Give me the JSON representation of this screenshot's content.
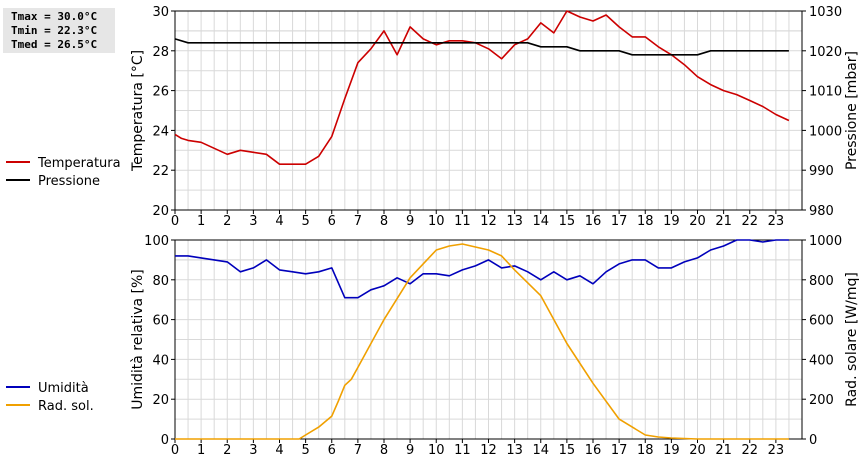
{
  "stats": {
    "tmax": "Tmax = 30.0°C",
    "tmin": "Tmin = 22.3°C",
    "tmed": "Tmed = 26.5°C"
  },
  "chart_data": [
    {
      "type": "line",
      "ylabel": "Temperatura [°C]",
      "y2label": "Pressione [mbar]",
      "xlim": [
        0,
        24
      ],
      "ylim": [
        20,
        30
      ],
      "y2lim": [
        980,
        1030
      ],
      "xticks": [
        0,
        1,
        2,
        3,
        4,
        5,
        6,
        7,
        8,
        9,
        10,
        11,
        12,
        13,
        14,
        15,
        16,
        17,
        18,
        19,
        20,
        21,
        22,
        23
      ],
      "yticks": [
        20,
        22,
        24,
        26,
        28,
        30
      ],
      "y2ticks": [
        980,
        990,
        1000,
        1010,
        1020,
        1030
      ],
      "grid": true,
      "legend_position": "left",
      "series": [
        {
          "name": "Temperatura",
          "color": "#cc0000",
          "axis": "left",
          "x": [
            0,
            0.25,
            0.5,
            1,
            1.5,
            2,
            2.5,
            3,
            3.5,
            4,
            4.5,
            5,
            5.5,
            6,
            6.5,
            7,
            7.5,
            8,
            8.5,
            9,
            9.5,
            10,
            10.5,
            11,
            11.5,
            12,
            12.5,
            13,
            13.5,
            14,
            14.5,
            15,
            15.5,
            16,
            16.5,
            17,
            17.5,
            18,
            18.5,
            19,
            19.5,
            20,
            20.5,
            21,
            21.5,
            22,
            22.5,
            23,
            23.5
          ],
          "y": [
            23.8,
            23.6,
            23.5,
            23.4,
            23.1,
            22.8,
            23.0,
            22.9,
            22.8,
            22.3,
            22.3,
            22.3,
            22.7,
            23.7,
            25.6,
            27.4,
            28.1,
            29.0,
            27.8,
            29.2,
            28.6,
            28.3,
            28.5,
            28.5,
            28.4,
            28.1,
            27.6,
            28.3,
            28.6,
            29.4,
            28.9,
            30.0,
            29.7,
            29.5,
            29.8,
            29.2,
            28.7,
            28.7,
            28.2,
            27.8,
            27.3,
            26.7,
            26.3,
            26.0,
            25.8,
            25.5,
            25.2,
            24.8,
            24.5
          ]
        },
        {
          "name": "Pressione",
          "color": "#000000",
          "axis": "right",
          "x": [
            0,
            0.5,
            1,
            2,
            3,
            4,
            5,
            6,
            7,
            8,
            9,
            10,
            11,
            12,
            13,
            13.5,
            14,
            15,
            15.5,
            16,
            17,
            17.5,
            18,
            19,
            20,
            20.5,
            21,
            22,
            23,
            23.5
          ],
          "y": [
            1023,
            1022,
            1022,
            1022,
            1022,
            1022,
            1022,
            1022,
            1022,
            1022,
            1022,
            1022,
            1022,
            1022,
            1022,
            1022,
            1021,
            1021,
            1020,
            1020,
            1020,
            1019,
            1019,
            1019,
            1019,
            1020,
            1020,
            1020,
            1020,
            1020
          ]
        }
      ]
    },
    {
      "type": "line",
      "ylabel": "Umidità relativa [%]",
      "y2label": "Rad. solare [W/mq]",
      "xlim": [
        0,
        24
      ],
      "ylim": [
        0,
        100
      ],
      "y2lim": [
        0,
        1000
      ],
      "xticks": [
        0,
        1,
        2,
        3,
        4,
        5,
        6,
        7,
        8,
        9,
        10,
        11,
        12,
        13,
        14,
        15,
        16,
        17,
        18,
        19,
        20,
        21,
        22,
        23
      ],
      "yticks": [
        0,
        20,
        40,
        60,
        80,
        100
      ],
      "y2ticks": [
        0,
        200,
        400,
        600,
        800,
        1000
      ],
      "grid": true,
      "legend_position": "left",
      "series": [
        {
          "name": "Umidità",
          "color": "#0000bb",
          "axis": "left",
          "x": [
            0,
            0.5,
            1,
            1.5,
            2,
            2.5,
            3,
            3.5,
            4,
            4.5,
            5,
            5.5,
            6,
            6.5,
            7,
            7.5,
            8,
            8.5,
            9,
            9.5,
            10,
            10.5,
            11,
            11.5,
            12,
            12.5,
            13,
            13.5,
            14,
            14.5,
            15,
            15.5,
            16,
            16.5,
            17,
            17.5,
            18,
            18.5,
            19,
            19.5,
            20,
            20.5,
            21,
            21.5,
            22,
            22.5,
            23,
            23.5
          ],
          "y": [
            92,
            92,
            91,
            90,
            89,
            84,
            86,
            90,
            85,
            84,
            83,
            84,
            86,
            71,
            71,
            75,
            77,
            81,
            78,
            83,
            83,
            82,
            85,
            87,
            90,
            86,
            87,
            84,
            80,
            84,
            80,
            82,
            78,
            84,
            88,
            90,
            90,
            86,
            86,
            89,
            91,
            95,
            97,
            100,
            100,
            99,
            100,
            100
          ]
        },
        {
          "name": "Rad. sol.",
          "color": "#f0a000",
          "axis": "right",
          "x": [
            0,
            1,
            2,
            3,
            4,
            4.75,
            5,
            5.5,
            6,
            6.25,
            6.5,
            6.75,
            7,
            8,
            9,
            10,
            10.5,
            11,
            11.5,
            12,
            12.5,
            13,
            14,
            15,
            16,
            17,
            18,
            18.5,
            19,
            20,
            21,
            22,
            23,
            23.5
          ],
          "y": [
            0,
            0,
            0,
            0,
            0,
            0,
            20,
            60,
            115,
            190,
            270,
            300,
            360,
            600,
            810,
            950,
            970,
            980,
            965,
            950,
            920,
            850,
            720,
            480,
            280,
            100,
            20,
            10,
            5,
            0,
            0,
            0,
            0,
            0
          ]
        }
      ]
    }
  ]
}
